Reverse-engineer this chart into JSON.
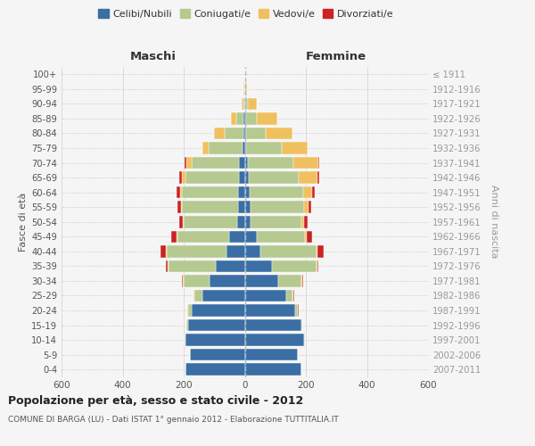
{
  "age_groups": [
    "0-4",
    "5-9",
    "10-14",
    "15-19",
    "20-24",
    "25-29",
    "30-34",
    "35-39",
    "40-44",
    "45-49",
    "50-54",
    "55-59",
    "60-64",
    "65-69",
    "70-74",
    "75-79",
    "80-84",
    "85-89",
    "90-94",
    "95-99",
    "100+"
  ],
  "birth_years": [
    "2007-2011",
    "2002-2006",
    "1997-2001",
    "1992-1996",
    "1987-1991",
    "1982-1986",
    "1977-1981",
    "1972-1976",
    "1967-1971",
    "1962-1966",
    "1957-1961",
    "1952-1956",
    "1947-1951",
    "1942-1946",
    "1937-1941",
    "1932-1936",
    "1927-1931",
    "1922-1926",
    "1917-1921",
    "1912-1916",
    "≤ 1911"
  ],
  "male": {
    "celibi": [
      195,
      180,
      195,
      185,
      175,
      140,
      115,
      95,
      60,
      50,
      25,
      22,
      22,
      20,
      18,
      8,
      5,
      3,
      0,
      0,
      0
    ],
    "coniugati": [
      0,
      0,
      2,
      5,
      10,
      25,
      85,
      155,
      195,
      170,
      175,
      185,
      185,
      175,
      155,
      110,
      60,
      25,
      5,
      2,
      0
    ],
    "vedovi": [
      0,
      0,
      0,
      0,
      2,
      2,
      2,
      2,
      2,
      2,
      3,
      3,
      5,
      10,
      18,
      20,
      35,
      18,
      5,
      2,
      0
    ],
    "divorziati": [
      0,
      0,
      0,
      0,
      2,
      2,
      5,
      5,
      18,
      18,
      12,
      10,
      12,
      10,
      5,
      0,
      0,
      0,
      0,
      0,
      0
    ]
  },
  "female": {
    "nubili": [
      185,
      175,
      195,
      185,
      165,
      135,
      110,
      90,
      50,
      38,
      20,
      18,
      15,
      12,
      10,
      5,
      5,
      3,
      2,
      0,
      0
    ],
    "coniugate": [
      0,
      0,
      2,
      3,
      8,
      22,
      75,
      145,
      185,
      160,
      165,
      175,
      175,
      165,
      150,
      115,
      65,
      35,
      8,
      2,
      0
    ],
    "vedove": [
      0,
      0,
      0,
      0,
      2,
      2,
      2,
      2,
      2,
      5,
      8,
      15,
      30,
      60,
      80,
      85,
      85,
      70,
      30,
      5,
      0
    ],
    "divorziate": [
      0,
      0,
      0,
      0,
      2,
      2,
      5,
      5,
      20,
      18,
      12,
      10,
      10,
      8,
      5,
      2,
      0,
      0,
      0,
      0,
      0
    ]
  },
  "colors": {
    "celibi": "#3a6ea5",
    "coniugati": "#b5c990",
    "vedovi": "#f0c060",
    "divorziati": "#cc2222"
  },
  "title": "Popolazione per età, sesso e stato civile - 2012",
  "subtitle": "COMUNE DI BARGA (LU) - Dati ISTAT 1° gennaio 2012 - Elaborazione TUTTITALIA.IT",
  "maschi_label": "Maschi",
  "femmine_label": "Femmine",
  "ylabel_left": "Fasce di età",
  "ylabel_right": "Anni di nascita",
  "xlim": 600,
  "background_color": "#f5f5f5",
  "grid_color": "#cccccc",
  "legend_items": [
    "Celibi/Nubili",
    "Coniugati/e",
    "Vedovi/e",
    "Divorziati/e"
  ]
}
